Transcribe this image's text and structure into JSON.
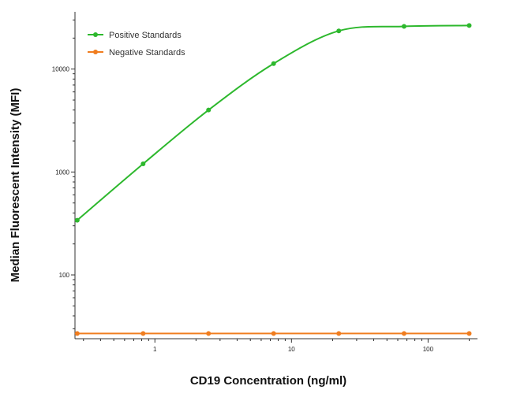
{
  "chart_data": {
    "type": "line",
    "xlabel": "CD19 Concentration (ng/ml)",
    "ylabel": "Median  Fluorescent Intensity  (MFI)",
    "xscale": "log",
    "yscale": "log",
    "xlim": [
      0.26,
      230
    ],
    "ylim": [
      24,
      36000
    ],
    "x_ticks": [
      1,
      10,
      100
    ],
    "x_tick_labels": [
      "1",
      "10",
      "100"
    ],
    "y_ticks": [
      100,
      1000,
      10000
    ],
    "y_tick_labels": [
      "100",
      "1000",
      "10000"
    ],
    "grid": false,
    "legend_position": "top-left",
    "series": [
      {
        "name": "Positive Standards",
        "color": "#2db82d",
        "x": [
          0.27,
          0.82,
          2.47,
          7.4,
          22.2,
          66.7,
          200
        ],
        "y": [
          340,
          1200,
          4000,
          11300,
          23500,
          26000,
          26500
        ]
      },
      {
        "name": "Negative Standards",
        "color": "#f07d1f",
        "x": [
          0.27,
          0.82,
          2.47,
          7.4,
          22.2,
          66.7,
          200
        ],
        "y": [
          27,
          27,
          27,
          27,
          27,
          27,
          27
        ]
      }
    ]
  }
}
